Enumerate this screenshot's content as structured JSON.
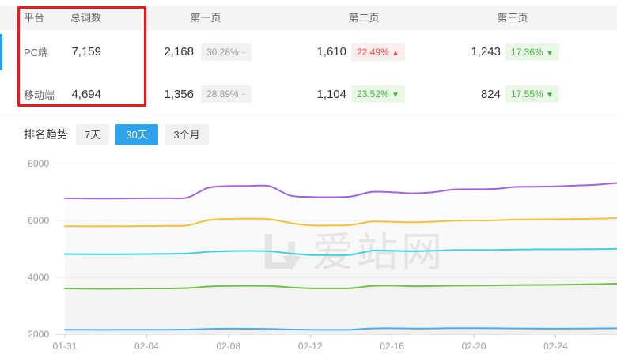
{
  "table": {
    "headers": {
      "platform": "平台",
      "total": "总词数",
      "page1": "第一页",
      "page2": "第二页",
      "page3": "第三页"
    },
    "rows": [
      {
        "platform": "PC端",
        "total": "7,159",
        "p1_count": "2,168",
        "p1_pct": "30.28%",
        "p1_arrow": "−",
        "p2_count": "1,610",
        "p2_pct": "22.49%",
        "p2_arrow": "▲",
        "p3_count": "1,243",
        "p3_pct": "17.36%",
        "p3_arrow": "▼"
      },
      {
        "platform": "移动端",
        "total": "4,694",
        "p1_count": "1,356",
        "p1_pct": "28.89%",
        "p1_arrow": "−",
        "p2_count": "1,104",
        "p2_pct": "23.52%",
        "p2_arrow": "▼",
        "p3_count": "824",
        "p3_pct": "17.55%",
        "p3_arrow": "▼"
      }
    ]
  },
  "trend": {
    "label": "排名趋势",
    "tabs": [
      {
        "label": "7天",
        "active": false
      },
      {
        "label": "30天",
        "active": true
      },
      {
        "label": "3个月",
        "active": false
      }
    ]
  },
  "watermark": {
    "text": "爱站网"
  },
  "colors": {
    "accent_blue": "#2ea3ec",
    "row_indicator_blue": "#2aa2e8",
    "annotation_red": "#e21f1f",
    "badge_up_text": "#e64c4c",
    "badge_down_text": "#43b244",
    "badge_flat_text": "#9b9b9b",
    "axis_text": "#999999",
    "gridline": "#ededed",
    "axis_line": "#cccccc"
  },
  "chart_data": {
    "type": "line",
    "title": "",
    "xlabel": "",
    "ylabel": "",
    "ylim": [
      2000,
      8000
    ],
    "yticks": [
      2000,
      4000,
      6000,
      8000
    ],
    "grid": true,
    "legend": "none",
    "x_tick_interval": 4,
    "x": [
      "01-31",
      "02-01",
      "02-02",
      "02-03",
      "02-04",
      "02-05",
      "02-06",
      "02-07",
      "02-08",
      "02-09",
      "02-10",
      "02-11",
      "02-12",
      "02-13",
      "02-14",
      "02-15",
      "02-16",
      "02-17",
      "02-18",
      "02-19",
      "02-20",
      "02-21",
      "02-22",
      "02-23",
      "02-24",
      "02-25",
      "02-26",
      "02-27"
    ],
    "series": [
      {
        "name": "line-1-purple",
        "color": "#9f62e3",
        "values": [
          6780,
          6775,
          6770,
          6775,
          6780,
          6785,
          6805,
          7150,
          7210,
          7215,
          7210,
          6880,
          6830,
          6820,
          6845,
          7005,
          6995,
          6955,
          6995,
          7090,
          7100,
          7110,
          7180,
          7190,
          7200,
          7230,
          7260,
          7320
        ]
      },
      {
        "name": "line-2-yellow",
        "color": "#f3c13a",
        "values": [
          5800,
          5795,
          5795,
          5800,
          5805,
          5810,
          5830,
          6010,
          6055,
          6060,
          6050,
          5915,
          5830,
          5825,
          5845,
          5960,
          5950,
          5935,
          5955,
          5990,
          6000,
          6005,
          6030,
          6040,
          6045,
          6055,
          6065,
          6085
        ]
      },
      {
        "name": "line-3-cyan",
        "color": "#3fd0e0",
        "values": [
          4820,
          4815,
          4810,
          4815,
          4820,
          4825,
          4840,
          4900,
          4925,
          4930,
          4920,
          4845,
          4790,
          4785,
          4795,
          4940,
          4935,
          4920,
          4935,
          4960,
          4965,
          4965,
          4980,
          4985,
          4985,
          4990,
          4995,
          5005
        ]
      },
      {
        "name": "line-4-green",
        "color": "#6cc344",
        "values": [
          3610,
          3605,
          3600,
          3605,
          3610,
          3612,
          3625,
          3680,
          3700,
          3705,
          3700,
          3650,
          3620,
          3615,
          3622,
          3700,
          3712,
          3692,
          3698,
          3710,
          3715,
          3720,
          3730,
          3735,
          3740,
          3750,
          3762,
          3780
        ]
      },
      {
        "name": "line-5-blue",
        "color": "#4da9f0",
        "values": [
          2160,
          2158,
          2155,
          2158,
          2160,
          2162,
          2165,
          2190,
          2198,
          2195,
          2190,
          2168,
          2158,
          2156,
          2160,
          2205,
          2212,
          2202,
          2206,
          2215,
          2215,
          2210,
          2206,
          2200,
          2196,
          2200,
          2205,
          2212
        ]
      }
    ]
  }
}
